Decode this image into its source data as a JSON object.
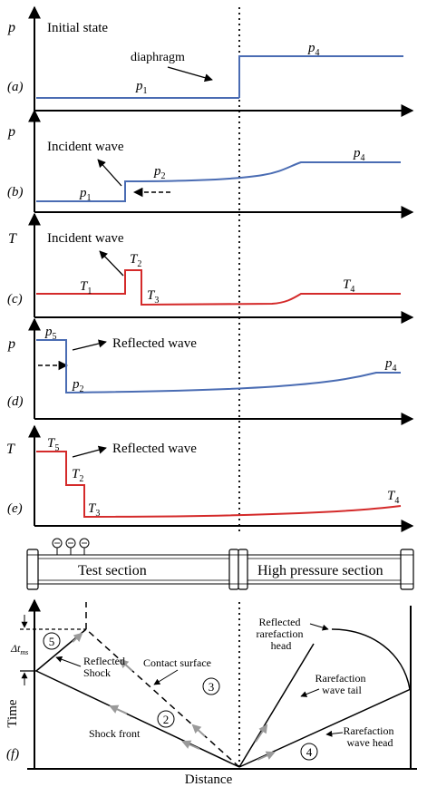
{
  "panels": {
    "a": {
      "tag": "(a)",
      "axis": "p",
      "title": "Initial state",
      "annotation": "diaphragm",
      "left_label": {
        "sym": "p",
        "sub": "1"
      },
      "right_label": {
        "sym": "p",
        "sub": "4"
      }
    },
    "b": {
      "tag": "(b)",
      "axis": "p",
      "title": "Incident wave",
      "l1": {
        "sym": "p",
        "sub": "1"
      },
      "l2": {
        "sym": "p",
        "sub": "2"
      },
      "l4": {
        "sym": "p",
        "sub": "4"
      }
    },
    "c": {
      "tag": "(c)",
      "axis": "T",
      "title": "Incident wave",
      "l1": {
        "sym": "T",
        "sub": "1"
      },
      "l2": {
        "sym": "T",
        "sub": "2"
      },
      "l3": {
        "sym": "T",
        "sub": "3"
      },
      "l4": {
        "sym": "T",
        "sub": "4"
      }
    },
    "d": {
      "tag": "(d)",
      "axis": "p",
      "title": "Reflected wave",
      "l5": {
        "sym": "p",
        "sub": "5"
      },
      "l2": {
        "sym": "p",
        "sub": "2"
      },
      "l4": {
        "sym": "p",
        "sub": "4"
      }
    },
    "e": {
      "tag": "(e)",
      "axis": "T",
      "title": "Reflected wave",
      "l5": {
        "sym": "T",
        "sub": "5"
      },
      "l2": {
        "sym": "T",
        "sub": "2"
      },
      "l3": {
        "sym": "T",
        "sub": "3"
      },
      "l4": {
        "sym": "T",
        "sub": "4"
      }
    }
  },
  "tube": {
    "test_section": "Test section",
    "high_pressure_section": "High pressure section"
  },
  "xt": {
    "tag": "(f)",
    "y_label": "Time",
    "x_label": "Distance",
    "delta_t": {
      "sym": "Δt",
      "sub": "ms"
    },
    "labels": {
      "reflected_shock": [
        "Reflected",
        "Shock"
      ],
      "contact_surface": "Contact surface",
      "shock_front": "Shock front",
      "reflected_rarefaction_head": [
        "Reflected",
        "rarefaction",
        "head"
      ],
      "rarefaction_tail": [
        "Rarefaction",
        "wave tail"
      ],
      "rarefaction_head": [
        "Rarefaction",
        "wave head"
      ]
    },
    "regions": [
      "5",
      "2",
      "3",
      "4"
    ]
  },
  "colors": {
    "pressure": "#4a6cb3",
    "temperature": "#d42a2a",
    "arrow_gray": "#9a9a9a"
  }
}
